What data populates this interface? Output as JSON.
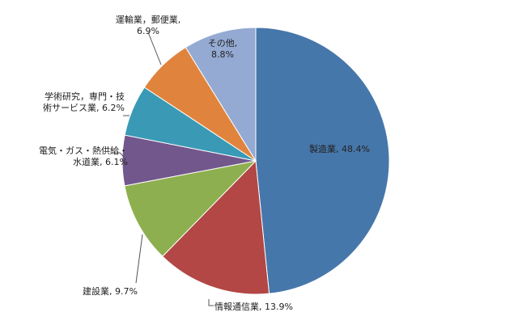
{
  "chart_data": {
    "type": "pie",
    "slices": [
      {
        "name": "製造業",
        "value": 48.4,
        "color": "#4677aa",
        "label_text": "製造業, 48.4%"
      },
      {
        "name": "情報通信業",
        "value": 13.9,
        "color": "#b24745",
        "label_text": "情報通信業, 13.9%"
      },
      {
        "name": "建設業",
        "value": 9.7,
        "color": "#8daf4f",
        "label_text": "建設業, 9.7%"
      },
      {
        "name": "電気・ガス・熱供給・水道業",
        "value": 6.1,
        "color": "#72578c",
        "label_lines": [
          "電気・ガス・熱供給・",
          "水道業, 6.1%"
        ]
      },
      {
        "name": "学術研究，専門・技術サービス業",
        "value": 6.2,
        "color": "#3a9ab5",
        "label_lines": [
          "学術研究，専門・技",
          "術サービス業, 6.2%"
        ]
      },
      {
        "name": "運輸業，郵便業",
        "value": 6.9,
        "color": "#e0843d",
        "label_lines": [
          "運輸業，郵便業,",
          "6.9%"
        ]
      },
      {
        "name": "その他",
        "value": 8.8,
        "color": "#94aad3",
        "label_lines": [
          "その他,",
          "8.8%"
        ]
      }
    ]
  }
}
